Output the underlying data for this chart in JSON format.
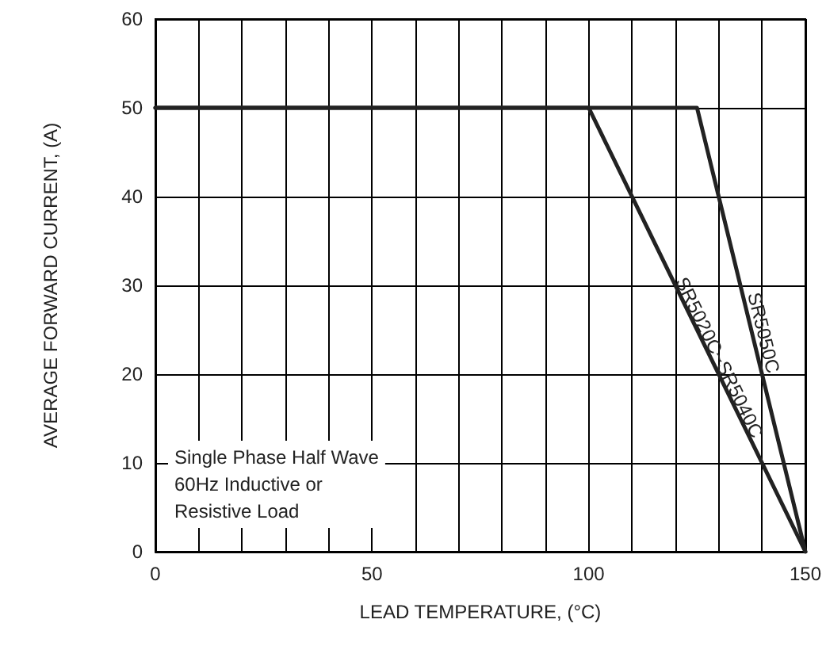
{
  "chart_data": {
    "type": "line",
    "xlabel": "LEAD TEMPERATURE, (°C)",
    "ylabel": "AVERAGE FORWARD CURRENT, (A)",
    "series": [
      {
        "name": "SR5020C~SR5040C",
        "color": "#222222",
        "x": [
          0,
          100,
          150
        ],
        "values": [
          50,
          50,
          0
        ]
      },
      {
        "name": "SR5050C",
        "color": "#222222",
        "x": [
          0,
          125,
          150
        ],
        "values": [
          50,
          50,
          0
        ]
      }
    ],
    "annotations": [
      "Single Phase Half Wave\n60Hz Inductive or\nResistive Load"
    ],
    "xlim": [
      0,
      150
    ],
    "xticks": [
      0,
      {
        "value": 10,
        "label": null
      },
      {
        "value": 20,
        "label": null
      },
      {
        "value": 30,
        "label": null
      },
      {
        "value": 40,
        "label": null
      },
      50,
      {
        "value": 60,
        "label": null
      },
      {
        "value": 70,
        "label": null
      },
      {
        "value": 80,
        "label": null
      },
      {
        "value": 90,
        "label": null
      },
      100,
      {
        "value": 110,
        "label": null
      },
      {
        "value": 120,
        "label": null
      },
      {
        "value": 130,
        "label": null
      },
      {
        "value": 140,
        "label": null
      },
      150
    ],
    "ylim": [
      0,
      60
    ],
    "yticks": [
      0,
      10,
      20,
      30,
      40,
      50,
      60
    ],
    "grid": true,
    "legend": false,
    "marker": "none",
    "line_style": "solid"
  }
}
